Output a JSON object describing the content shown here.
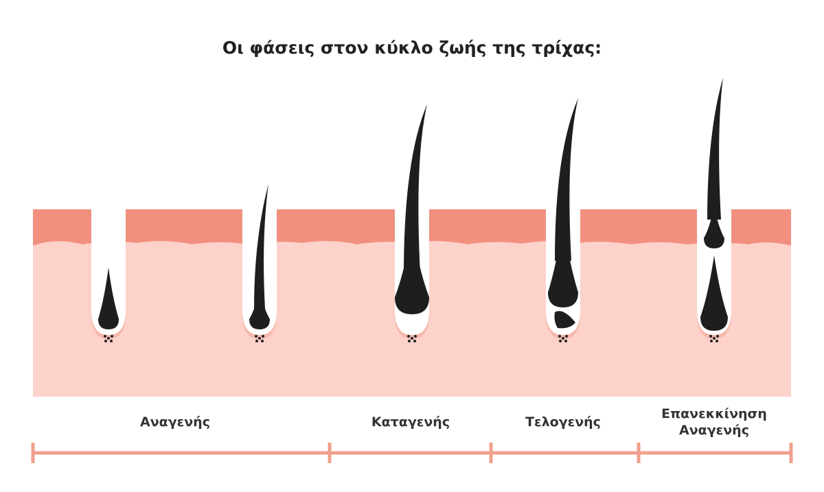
{
  "title": "Οι φάσεις στον κύκλο ζωής της τρίχας:",
  "phases": [
    {
      "label": "Αναγενής"
    },
    {
      "label": "Καταγενής"
    },
    {
      "label": "Τελογενής"
    },
    {
      "label": "Επανεκκίνηση Αναγενής"
    }
  ]
}
